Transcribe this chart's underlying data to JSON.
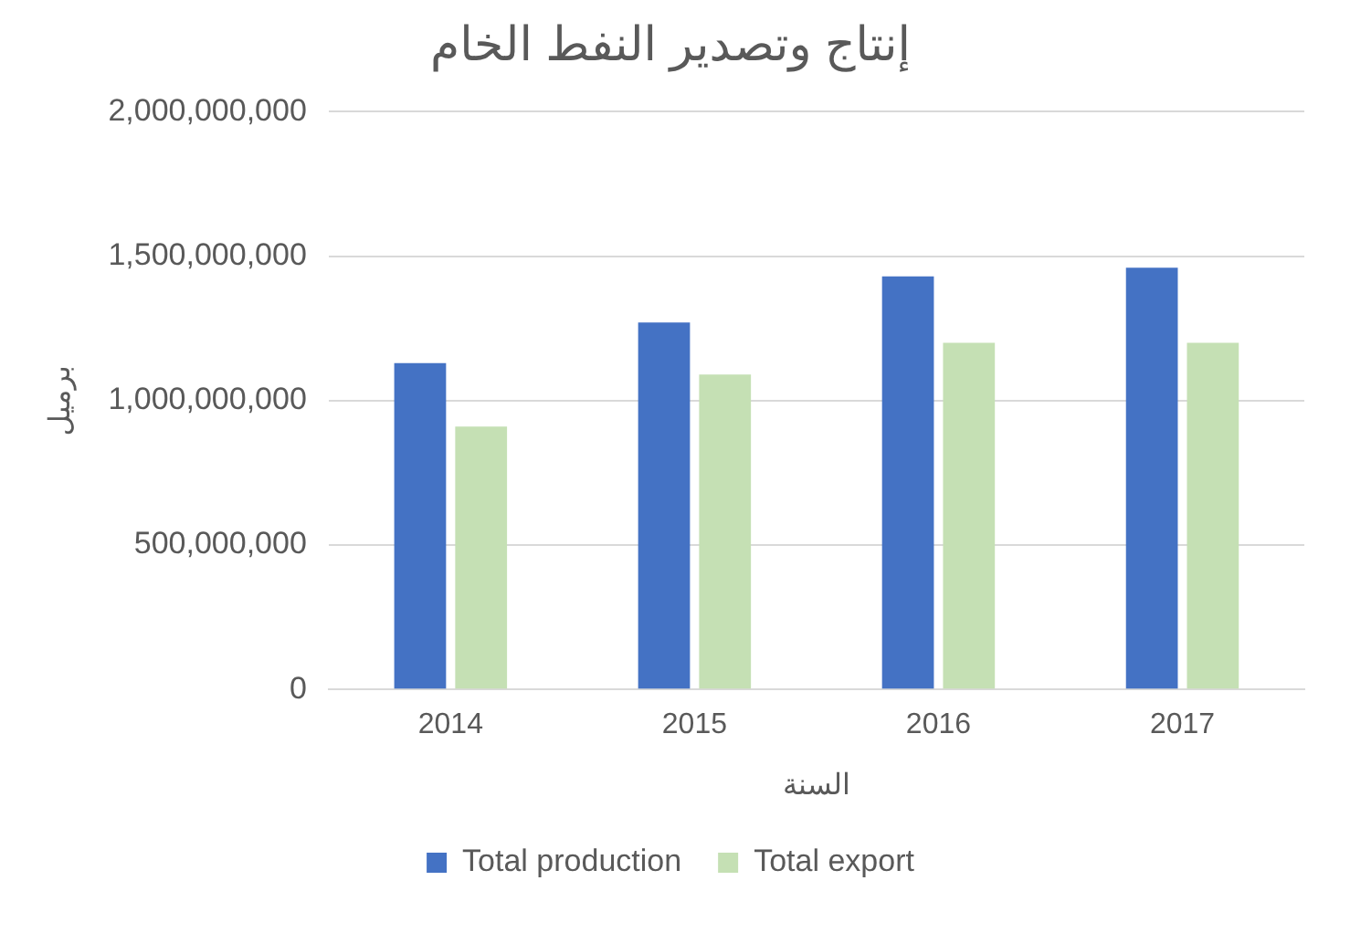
{
  "chart_data": {
    "type": "bar",
    "title": "إنتاج وتصدير النفط الخام",
    "xlabel": "السنة",
    "ylabel": "برميل",
    "categories": [
      "2014",
      "2015",
      "2016",
      "2017"
    ],
    "series": [
      {
        "name": "Total production",
        "color": "#4472c4",
        "values": [
          1130000000,
          1270000000,
          1430000000,
          1460000000
        ]
      },
      {
        "name": "Total export",
        "color": "#c5e0b4",
        "values": [
          910000000,
          1090000000,
          1200000000,
          1200000000
        ]
      }
    ],
    "ylim": [
      0,
      2000000000
    ],
    "yticks": [
      {
        "value": 0,
        "label": "0"
      },
      {
        "value": 500000000,
        "label": "500,000,000"
      },
      {
        "value": 1000000000,
        "label": "1,000,000,000"
      },
      {
        "value": 1500000000,
        "label": "1,500,000,000"
      },
      {
        "value": 2000000000,
        "label": "2,000,000,000"
      }
    ],
    "grid": "y",
    "legend": "bottom"
  }
}
